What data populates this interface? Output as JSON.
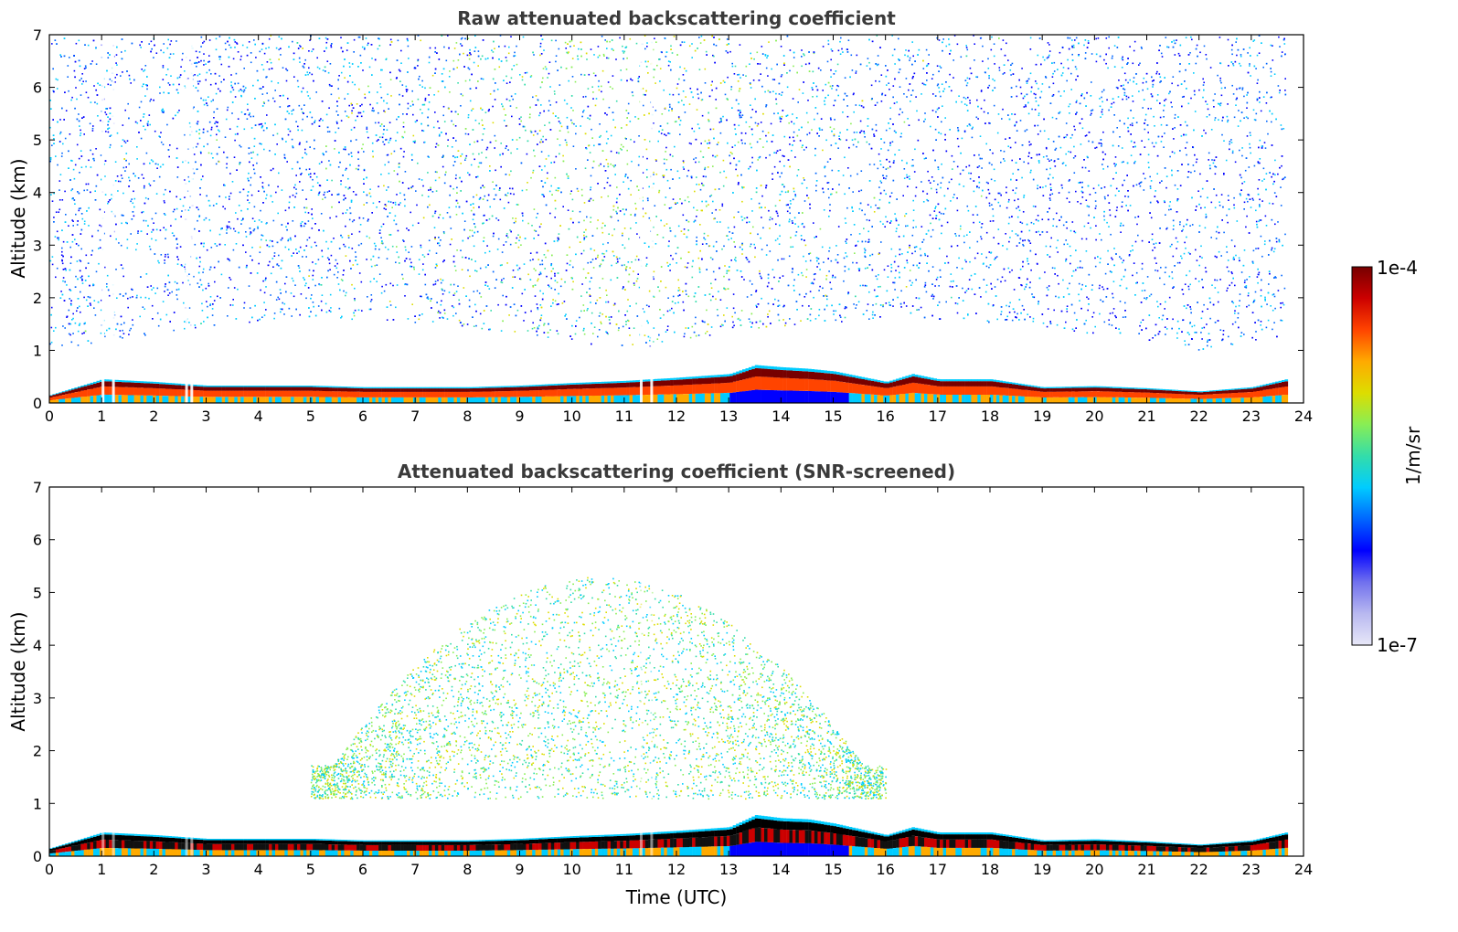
{
  "chart_data": [
    {
      "type": "heatmap",
      "title": "Raw attenuated backscattering coefficient",
      "xlabel": "",
      "ylabel": "Altitude (km)",
      "xlim": [
        0,
        24
      ],
      "ylim": [
        0,
        7
      ],
      "xticks": [
        "0",
        "1",
        "2",
        "3",
        "4",
        "5",
        "6",
        "7",
        "8",
        "9",
        "10",
        "11",
        "12",
        "13",
        "14",
        "15",
        "16",
        "17",
        "18",
        "19",
        "20",
        "21",
        "22",
        "23",
        "24"
      ],
      "yticks": [
        "0",
        "1",
        "2",
        "3",
        "4",
        "5",
        "6",
        "7"
      ],
      "layer_height_km": {
        "time_utc": [
          0,
          1,
          2,
          3,
          4,
          5,
          6,
          7,
          8,
          9,
          10,
          11,
          12,
          13,
          13.5,
          14,
          14.5,
          15,
          16,
          16.5,
          17,
          18,
          19,
          20,
          21,
          22,
          23,
          23.65
        ],
        "top_km": [
          0.15,
          0.45,
          0.4,
          0.33,
          0.33,
          0.33,
          0.3,
          0.3,
          0.3,
          0.33,
          0.38,
          0.42,
          0.48,
          0.55,
          0.72,
          0.68,
          0.65,
          0.6,
          0.4,
          0.55,
          0.45,
          0.45,
          0.3,
          0.32,
          0.28,
          0.22,
          0.3,
          0.45
        ]
      },
      "data_end_utc": 23.65,
      "signal_above_layer": "noisy, up to 7 km"
    },
    {
      "type": "heatmap",
      "title": "Attenuated backscattering coefficient (SNR-screened)",
      "xlabel": "Time (UTC)",
      "ylabel": "Altitude (km)",
      "xlim": [
        0,
        24
      ],
      "ylim": [
        0,
        7
      ],
      "xticks": [
        "0",
        "1",
        "2",
        "3",
        "4",
        "5",
        "6",
        "7",
        "8",
        "9",
        "10",
        "11",
        "12",
        "13",
        "14",
        "15",
        "16",
        "17",
        "18",
        "19",
        "20",
        "21",
        "22",
        "23",
        "24"
      ],
      "yticks": [
        "0",
        "1",
        "2",
        "3",
        "4",
        "5",
        "6",
        "7"
      ],
      "layer_height_km": {
        "time_utc": [
          0,
          1,
          2,
          3,
          4,
          5,
          6,
          7,
          8,
          9,
          10,
          11,
          12,
          13,
          13.5,
          14,
          14.5,
          15,
          16,
          16.5,
          17,
          18,
          19,
          20,
          21,
          22,
          23,
          23.65
        ],
        "top_km": [
          0.15,
          0.45,
          0.4,
          0.33,
          0.33,
          0.33,
          0.3,
          0.3,
          0.3,
          0.33,
          0.38,
          0.42,
          0.48,
          0.55,
          0.78,
          0.72,
          0.7,
          0.62,
          0.4,
          0.55,
          0.45,
          0.45,
          0.3,
          0.32,
          0.28,
          0.22,
          0.3,
          0.45
        ]
      },
      "data_end_utc": 23.65,
      "signal_above_layer": "screened, 1–5 km between 5 and 16 UTC"
    }
  ],
  "colorbar": {
    "label": "1/m/sr",
    "max_label": "1e-4",
    "min_label": "1e-7",
    "colors": [
      "#e8e8f8",
      "#b8b8f0",
      "#7070ee",
      "#0000ff",
      "#0066ff",
      "#00ccff",
      "#33ddaa",
      "#88ee55",
      "#dddd00",
      "#ffaa00",
      "#ff4400",
      "#cc0000",
      "#770000"
    ]
  }
}
